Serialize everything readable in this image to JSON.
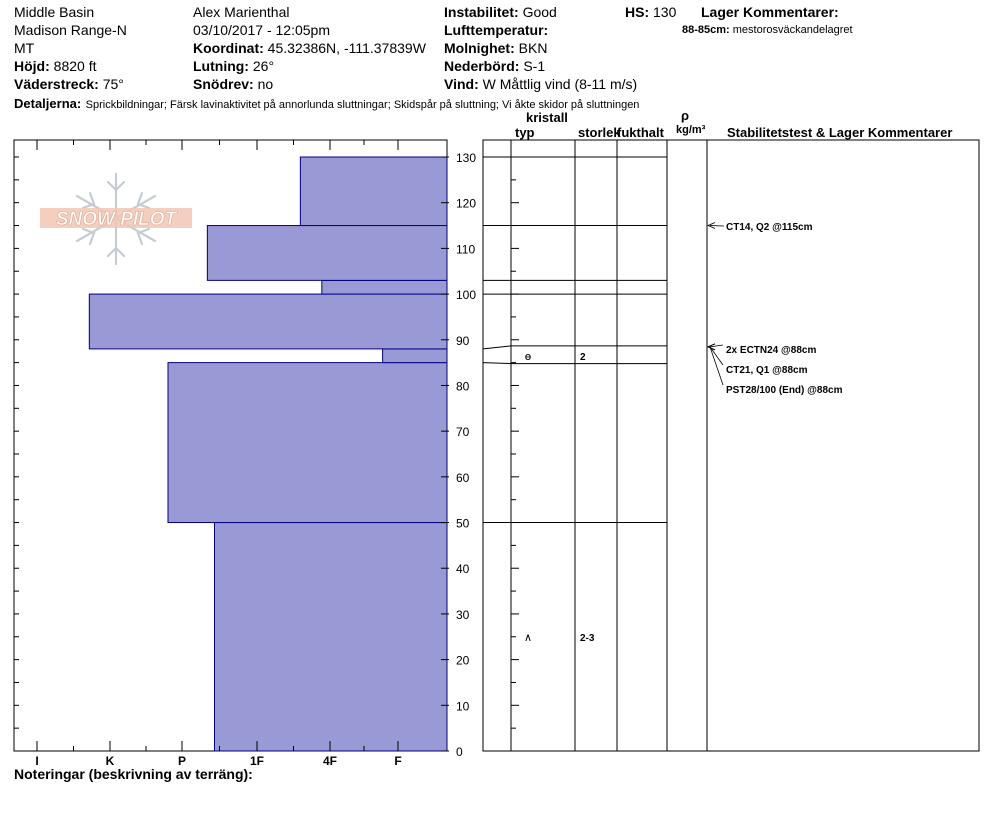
{
  "header": {
    "location": "Middle Basin",
    "range": "Madison Range-N",
    "state": "MT",
    "elevation_label": "Höjd:",
    "elevation": "8820 ft",
    "aspect_label": "Väderstreck:",
    "aspect": "75°",
    "observer": "Alex Marienthal",
    "datetime": "03/10/2017 - 12:05pm",
    "coord_label": "Koordinat:",
    "coord": "45.32386N, -111.37839W",
    "slope_label": "Lutning:",
    "slope": "26°",
    "blowing_snow_label": "Snödrev:",
    "blowing_snow": "no",
    "instability_label": "Instabilitet:",
    "instability": "Good",
    "air_temp_label": "Lufttemperatur:",
    "sky_label": "Molnighet:",
    "sky": "BKN",
    "precip_label": "Nederbörd:",
    "precip": "S-1",
    "wind_label": "Vind:",
    "wind": "W Måttlig vind (8-11 m/s)",
    "hs_label": "HS:",
    "hs": "130",
    "layer_comments_label": "Lager Kommentarer:",
    "layer_comment_range": "88-85cm:",
    "layer_comment_text": "mestorosväckandelagret",
    "details_label": "Detaljerna:",
    "details": "Sprickbildningar;  Färsk lavinaktivitet på annorlunda sluttningar;  Skidspår på sluttning;  Vi åkte skidor på sluttningen"
  },
  "columns": {
    "crystal": "kristall",
    "type": "typ",
    "size": "storlek",
    "moisture": "fukthalt",
    "rho": "ρ",
    "density_unit": "kg/m³",
    "stability_title": "Stabilitetstest & Lager Kommentarer"
  },
  "footer": {
    "notes_label": "Noteringar (beskrivning av terräng):"
  },
  "logo_text": "SNOW PILOT",
  "colors": {
    "bar_fill": "#9999d6",
    "bar_stroke": "#000080",
    "line": "#000000"
  },
  "chart_data": {
    "type": "bar",
    "orientation": "horizontal",
    "ylabel": "",
    "ylim": [
      0,
      130
    ],
    "y_ticks": [
      0,
      10,
      20,
      30,
      40,
      50,
      60,
      70,
      80,
      90,
      100,
      110,
      120,
      130
    ],
    "hardness_scale": [
      "I",
      "K",
      "P",
      "1F",
      "4F",
      "F"
    ],
    "hardness_profile": [
      {
        "bottom": 0,
        "top": 50,
        "hardness": "4F"
      },
      {
        "bottom": 50,
        "top": 85,
        "hardness": "4F+"
      },
      {
        "bottom": 85,
        "top": 88,
        "hardness": "F+"
      },
      {
        "bottom": 88,
        "top": 100,
        "hardness": "1F"
      },
      {
        "bottom": 100,
        "top": 103,
        "hardness": "F-"
      },
      {
        "bottom": 103,
        "top": 115,
        "hardness": "4F"
      },
      {
        "bottom": 115,
        "top": 130,
        "hardness": "4F-"
      }
    ],
    "hardness_index_profile": [
      3.25,
      3.9,
      0.9,
      5.0,
      1.75,
      3.35,
      2.05
    ],
    "layer_boundaries": [
      130,
      115,
      103,
      100,
      88,
      85,
      50
    ],
    "crystals": [
      {
        "depth": 86.5,
        "type_symbol": "ɵ",
        "size": "2"
      },
      {
        "depth": 25,
        "type_symbol": "∧",
        "size": "2-3"
      }
    ],
    "stability_tests": [
      {
        "depth": 115,
        "text": "CT14, Q2 @115cm"
      },
      {
        "depth": 88,
        "text": "2x ECTN24 @88cm"
      },
      {
        "depth": 88,
        "text": "CT21, Q1 @88cm"
      },
      {
        "depth": 88,
        "text": "PST28/100 (End) @88cm"
      }
    ]
  }
}
